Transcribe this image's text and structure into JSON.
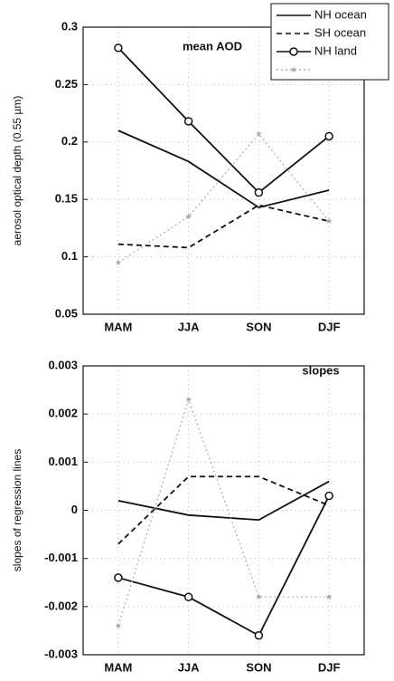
{
  "chart_data": [
    {
      "type": "line",
      "annotation": "mean AOD",
      "ylabel": "aerosol optical depth (0.55 µm)",
      "categories": [
        "MAM",
        "JJA",
        "SON",
        "DJF"
      ],
      "ylim": [
        0.05,
        0.3
      ],
      "yticks": [
        0.05,
        0.1,
        0.15,
        0.2,
        0.25,
        0.3
      ],
      "grid": true,
      "legend": "upper right",
      "series": [
        {
          "name": "NH ocean",
          "color": "#111111",
          "style": "solid",
          "values": [
            0.21,
            0.183,
            0.143,
            0.158
          ]
        },
        {
          "name": "SH ocean",
          "color": "#111111",
          "style": "dashed",
          "values": [
            0.111,
            0.108,
            0.145,
            0.131
          ]
        },
        {
          "name": "NH land",
          "color": "#111111",
          "style": "solid",
          "marker": "circle",
          "values": [
            0.282,
            0.218,
            0.156,
            0.205
          ]
        },
        {
          "color": "#aaaaaa",
          "style": "dotted",
          "marker": "star",
          "values": [
            0.095,
            0.135,
            0.207,
            0.131
          ]
        }
      ]
    },
    {
      "type": "line",
      "annotation": "slopes",
      "ylabel": "slopes of regression lines",
      "categories": [
        "MAM",
        "JJA",
        "SON",
        "DJF"
      ],
      "ylim": [
        -0.003,
        0.003
      ],
      "yticks": [
        -0.003,
        -0.002,
        -0.001,
        0,
        0.001,
        0.002,
        0.003
      ],
      "grid": true,
      "series": [
        {
          "color": "#111111",
          "style": "solid",
          "values": [
            0.0002,
            -0.0001,
            -0.0002,
            0.0006
          ]
        },
        {
          "color": "#111111",
          "style": "dashed",
          "values": [
            -0.0007,
            0.0007,
            0.0007,
            0.0001
          ]
        },
        {
          "color": "#111111",
          "style": "solid",
          "marker": "circle",
          "values": [
            -0.0014,
            -0.0018,
            -0.0026,
            0.0003
          ]
        },
        {
          "color": "#aaaaaa",
          "style": "dotted",
          "marker": "star",
          "values": [
            -0.0024,
            0.0023,
            -0.0018,
            -0.0018
          ]
        }
      ]
    }
  ]
}
